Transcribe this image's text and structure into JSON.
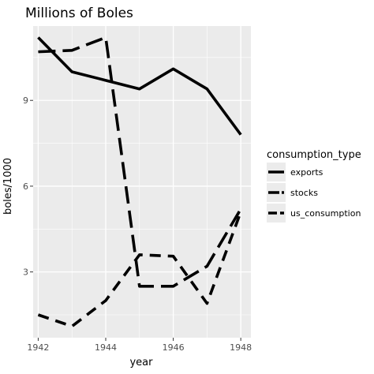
{
  "chart_data": {
    "type": "line",
    "title": "Millions of Boles",
    "xlabel": "year",
    "ylabel": "boles/1000",
    "x": [
      1942,
      1943,
      1944,
      1945,
      1946,
      1947,
      1948
    ],
    "xlim": [
      1941.85,
      1948.3
    ],
    "ylim": [
      0.7,
      11.6
    ],
    "x_ticks": [
      1942,
      1944,
      1946,
      1948
    ],
    "y_ticks": [
      3,
      6,
      9
    ],
    "x_tick_labels": [
      "1942",
      "1944",
      "1946",
      "1948"
    ],
    "y_tick_labels": [
      "3",
      "6",
      "9"
    ],
    "grid": true,
    "legend": {
      "title": "consumption_type",
      "placement": "right"
    },
    "series": [
      {
        "name": "exports",
        "values": [
          11.2,
          10.0,
          9.7,
          9.4,
          10.1,
          9.4,
          7.8
        ],
        "dash": "solid"
      },
      {
        "name": "stocks",
        "values": [
          10.7,
          10.75,
          11.2,
          2.5,
          2.5,
          3.2,
          5.2
        ],
        "dash": "longdash"
      },
      {
        "name": "us_consumption",
        "values": [
          1.5,
          1.1,
          2.0,
          3.6,
          3.55,
          1.9,
          5.1
        ],
        "dash": "dash"
      }
    ],
    "line_color": "#000000",
    "panel_background": "#ebebeb",
    "grid_color": "#ffffff"
  }
}
